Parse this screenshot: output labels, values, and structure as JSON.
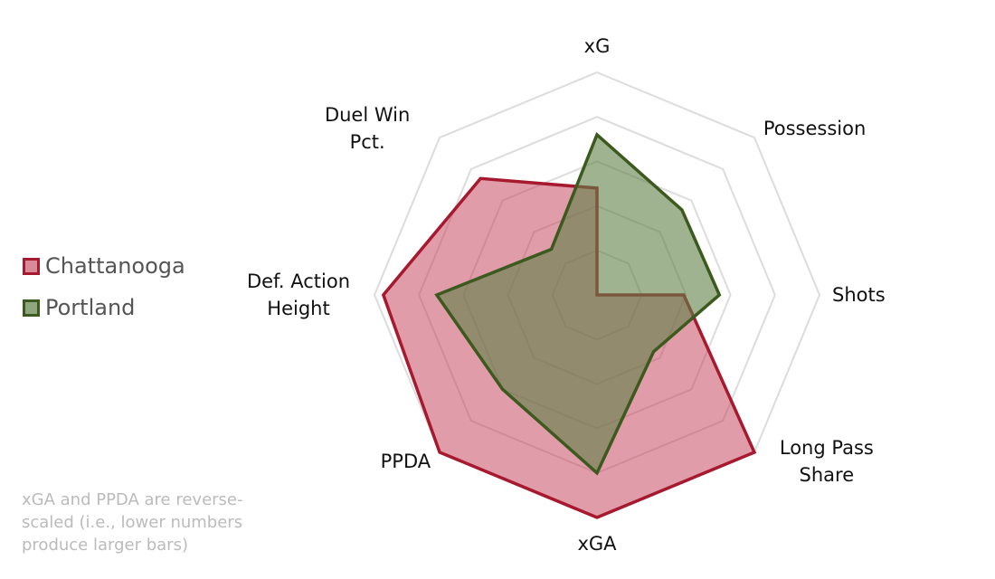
{
  "chart_data": {
    "type": "radar",
    "categories": [
      "xG",
      "Possession",
      "Shots",
      "Long Pass Share",
      "xGA",
      "PPDA",
      "Def. Action Height",
      "Duel Win Pct."
    ],
    "series": [
      {
        "name": "Chattanooga",
        "color": "#a6192e",
        "values": [
          48,
          0,
          39,
          100,
          100,
          100,
          96,
          74
        ]
      },
      {
        "name": "Portland",
        "color": "#3d5a1e",
        "values": [
          72,
          54,
          55,
          36,
          80,
          60,
          72,
          29
        ]
      }
    ],
    "rlim": [
      0,
      100
    ],
    "rticks": [
      20,
      40,
      60,
      80,
      100
    ],
    "grid": true,
    "legend": "left",
    "note": "xGA and PPDA are reverse-scaled (i.e., lower numbers produce larger bars)"
  }
}
